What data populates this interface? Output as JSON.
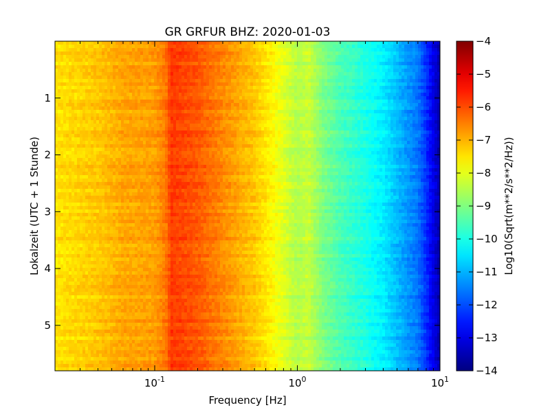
{
  "chart_data": {
    "type": "heatmap",
    "title": "GR GRFUR BHZ: 2020-01-03",
    "xlabel": "Frequency [Hz]",
    "ylabel": "Lokalzeit (UTC + 1 Stunde)",
    "colorbar_label": "Log10(Sqrt(m**2/s**2/Hz))",
    "x_scale": "log",
    "xlim": [
      0.02,
      10
    ],
    "ylim": [
      0,
      5.8
    ],
    "y_inverted": true,
    "x_ticks": [
      {
        "value": 0.1,
        "base": "10",
        "exp": "-1"
      },
      {
        "value": 1,
        "base": "10",
        "exp": "0"
      },
      {
        "value": 10,
        "base": "10",
        "exp": "1"
      }
    ],
    "y_ticks": [
      {
        "value": 1,
        "label": "1"
      },
      {
        "value": 2,
        "label": "2"
      },
      {
        "value": 3,
        "label": "3"
      },
      {
        "value": 4,
        "label": "4"
      },
      {
        "value": 5,
        "label": "5"
      }
    ],
    "colorbar": {
      "range": [
        -14,
        -4
      ],
      "colormap": "jet",
      "ticks": [
        {
          "value": -4,
          "label": "−4"
        },
        {
          "value": -5,
          "label": "−5"
        },
        {
          "value": -6,
          "label": "−6"
        },
        {
          "value": -7,
          "label": "−7"
        },
        {
          "value": -8,
          "label": "−8"
        },
        {
          "value": -9,
          "label": "−9"
        },
        {
          "value": -10,
          "label": "−10"
        },
        {
          "value": -11,
          "label": "−11"
        },
        {
          "value": -12,
          "label": "−12"
        },
        {
          "value": -13,
          "label": "−13"
        },
        {
          "value": -14,
          "label": "−14"
        }
      ]
    },
    "frequency_profile": {
      "freq_hz": [
        0.02,
        0.04,
        0.06,
        0.1,
        0.12,
        0.13,
        0.15,
        0.2,
        0.3,
        0.5,
        0.7,
        1.0,
        1.2,
        1.5,
        2.0,
        3.0,
        4.0,
        5.0,
        6.0,
        7.0,
        8.0,
        9.0,
        10.0
      ],
      "log10_amplitude": [
        -7.5,
        -7.2,
        -6.9,
        -6.8,
        -6.4,
        -5.8,
        -5.9,
        -6.1,
        -6.6,
        -7.2,
        -7.8,
        -8.5,
        -8.3,
        -9.0,
        -9.5,
        -10.0,
        -10.4,
        -10.9,
        -11.3,
        -11.6,
        -12.3,
        -13.0,
        -13.6
      ]
    }
  }
}
